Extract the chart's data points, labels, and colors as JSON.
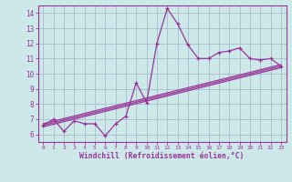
{
  "xlabel": "Windchill (Refroidissement éolien,°C)",
  "bg_color": "#cce8e8",
  "line_color": "#993399",
  "grid_color": "#aabbcc",
  "x_data": [
    0,
    1,
    2,
    3,
    4,
    5,
    6,
    7,
    8,
    9,
    10,
    11,
    12,
    13,
    14,
    15,
    16,
    17,
    18,
    19,
    20,
    21,
    22,
    23
  ],
  "y_main": [
    6.6,
    7.0,
    6.2,
    6.9,
    6.7,
    6.7,
    5.9,
    6.7,
    7.2,
    9.4,
    8.1,
    12.0,
    14.3,
    13.3,
    11.9,
    11.0,
    11.0,
    11.4,
    11.5,
    11.7,
    11.0,
    10.9,
    11.0,
    10.5
  ],
  "trend1_start": 6.5,
  "trend1_end": 10.4,
  "trend2_start": 6.6,
  "trend2_end": 10.5,
  "trend3_start": 6.7,
  "trend3_end": 10.6,
  "xlim": [
    -0.5,
    23.5
  ],
  "ylim": [
    5.5,
    14.5
  ],
  "yticks": [
    6,
    7,
    8,
    9,
    10,
    11,
    12,
    13,
    14
  ],
  "xticks": [
    0,
    1,
    2,
    3,
    4,
    5,
    6,
    7,
    8,
    9,
    10,
    11,
    12,
    13,
    14,
    15,
    16,
    17,
    18,
    19,
    20,
    21,
    22,
    23
  ]
}
